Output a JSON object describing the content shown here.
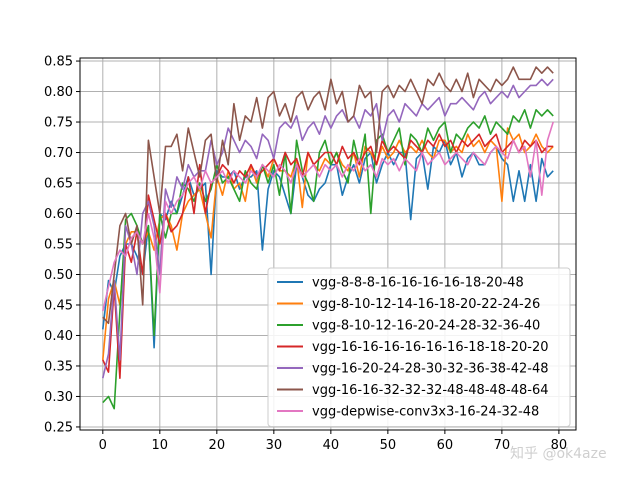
{
  "chart_data": {
    "type": "line",
    "title": "",
    "xlabel": "",
    "ylabel": "",
    "xlim": [
      -4,
      83
    ],
    "ylim": [
      0.245,
      0.855
    ],
    "grid": true,
    "legend_position": "bottom-right",
    "x_ticks": [
      0,
      10,
      20,
      30,
      40,
      50,
      60,
      70,
      80
    ],
    "y_ticks": [
      "0.25",
      "0.30",
      "0.35",
      "0.40",
      "0.45",
      "0.50",
      "0.55",
      "0.60",
      "0.65",
      "0.70",
      "0.75",
      "0.80",
      "0.85"
    ],
    "series": [
      {
        "name": "vgg-8-8-8-16-16-16-16-18-20-48",
        "color": "#1f77b4",
        "values": [
          0.41,
          0.49,
          0.47,
          0.53,
          0.55,
          0.55,
          0.53,
          0.5,
          0.58,
          0.38,
          0.6,
          0.59,
          0.62,
          0.6,
          0.63,
          0.66,
          0.63,
          0.64,
          0.65,
          0.5,
          0.67,
          0.66,
          0.66,
          0.67,
          0.64,
          0.66,
          0.66,
          0.67,
          0.54,
          0.64,
          0.67,
          0.66,
          0.63,
          0.6,
          0.68,
          0.66,
          0.63,
          0.62,
          0.64,
          0.65,
          0.68,
          0.68,
          0.63,
          0.66,
          0.68,
          0.65,
          0.69,
          0.7,
          0.65,
          0.68,
          0.7,
          0.68,
          0.7,
          0.7,
          0.59,
          0.69,
          0.7,
          0.64,
          0.71,
          0.7,
          0.72,
          0.68,
          0.7,
          0.66,
          0.69,
          0.7,
          0.68,
          0.68,
          0.7,
          0.71,
          0.69,
          0.68,
          0.62,
          0.67,
          0.62,
          0.68,
          0.62,
          0.69,
          0.66,
          0.67
        ]
      },
      {
        "name": "vgg-8-10-12-14-16-18-20-22-24-26",
        "color": "#ff7f0e",
        "values": [
          0.36,
          0.46,
          0.49,
          0.45,
          0.55,
          0.57,
          0.57,
          0.55,
          0.57,
          0.54,
          0.59,
          0.6,
          0.58,
          0.54,
          0.6,
          0.62,
          0.63,
          0.64,
          0.6,
          0.56,
          0.66,
          0.63,
          0.67,
          0.64,
          0.65,
          0.62,
          0.68,
          0.65,
          0.68,
          0.66,
          0.69,
          0.67,
          0.67,
          0.66,
          0.69,
          0.61,
          0.7,
          0.68,
          0.67,
          0.69,
          0.68,
          0.7,
          0.68,
          0.67,
          0.7,
          0.66,
          0.71,
          0.7,
          0.68,
          0.71,
          0.69,
          0.7,
          0.72,
          0.7,
          0.71,
          0.7,
          0.72,
          0.7,
          0.69,
          0.72,
          0.72,
          0.7,
          0.71,
          0.7,
          0.73,
          0.71,
          0.72,
          0.7,
          0.72,
          0.71,
          0.62,
          0.74,
          0.72,
          0.73,
          0.7,
          0.71,
          0.73,
          0.71,
          0.7,
          0.71
        ]
      },
      {
        "name": "vgg-8-10-12-16-20-24-28-32-36-40",
        "color": "#2ca02c",
        "values": [
          0.29,
          0.3,
          0.28,
          0.44,
          0.59,
          0.6,
          0.58,
          0.55,
          0.58,
          0.4,
          0.6,
          0.56,
          0.6,
          0.6,
          0.65,
          0.64,
          0.62,
          0.65,
          0.62,
          0.64,
          0.68,
          0.65,
          0.66,
          0.64,
          0.62,
          0.67,
          0.65,
          0.64,
          0.68,
          0.65,
          0.68,
          0.63,
          0.7,
          0.6,
          0.72,
          0.67,
          0.65,
          0.62,
          0.7,
          0.72,
          0.68,
          0.7,
          0.67,
          0.65,
          0.72,
          0.68,
          0.73,
          0.6,
          0.72,
          0.73,
          0.7,
          0.72,
          0.74,
          0.68,
          0.73,
          0.72,
          0.7,
          0.74,
          0.72,
          0.74,
          0.75,
          0.7,
          0.73,
          0.72,
          0.74,
          0.75,
          0.74,
          0.76,
          0.73,
          0.75,
          0.74,
          0.73,
          0.76,
          0.75,
          0.77,
          0.74,
          0.77,
          0.76,
          0.77,
          0.76
        ]
      },
      {
        "name": "vgg-16-16-16-16-16-16-18-18-20-20",
        "color": "#d62728",
        "values": [
          0.36,
          0.34,
          0.48,
          0.33,
          0.55,
          0.52,
          0.57,
          0.5,
          0.63,
          0.59,
          0.55,
          0.6,
          0.57,
          0.58,
          0.6,
          0.66,
          0.6,
          0.68,
          0.6,
          0.65,
          0.66,
          0.68,
          0.67,
          0.65,
          0.67,
          0.66,
          0.68,
          0.66,
          0.67,
          0.68,
          0.69,
          0.67,
          0.7,
          0.68,
          0.69,
          0.66,
          0.7,
          0.68,
          0.69,
          0.7,
          0.7,
          0.68,
          0.71,
          0.69,
          0.7,
          0.68,
          0.7,
          0.71,
          0.68,
          0.72,
          0.7,
          0.71,
          0.7,
          0.69,
          0.72,
          0.71,
          0.7,
          0.72,
          0.71,
          0.73,
          0.71,
          0.72,
          0.7,
          0.72,
          0.71,
          0.72,
          0.73,
          0.71,
          0.72,
          0.73,
          0.7,
          0.71,
          0.72,
          0.7,
          0.72,
          0.71,
          0.72,
          0.7,
          0.71,
          0.71
        ]
      },
      {
        "name": "vgg-16-20-24-28-30-32-36-38-42-48",
        "color": "#9467bd",
        "values": [
          0.33,
          0.37,
          0.49,
          0.36,
          0.58,
          0.55,
          0.5,
          0.6,
          0.62,
          0.58,
          0.5,
          0.64,
          0.61,
          0.66,
          0.64,
          0.68,
          0.66,
          0.67,
          0.67,
          0.72,
          0.68,
          0.7,
          0.74,
          0.72,
          0.7,
          0.72,
          0.71,
          0.69,
          0.73,
          0.72,
          0.69,
          0.74,
          0.75,
          0.74,
          0.76,
          0.72,
          0.74,
          0.75,
          0.73,
          0.76,
          0.74,
          0.76,
          0.77,
          0.75,
          0.76,
          0.74,
          0.77,
          0.76,
          0.78,
          0.72,
          0.76,
          0.77,
          0.75,
          0.78,
          0.77,
          0.76,
          0.78,
          0.77,
          0.78,
          0.79,
          0.76,
          0.78,
          0.78,
          0.79,
          0.78,
          0.77,
          0.79,
          0.8,
          0.78,
          0.79,
          0.8,
          0.79,
          0.81,
          0.79,
          0.8,
          0.81,
          0.81,
          0.82,
          0.81,
          0.82
        ]
      },
      {
        "name": "vgg-16-16-32-32-32-48-48-48-48-64",
        "color": "#8c564b",
        "values": [
          0.43,
          0.42,
          0.5,
          0.58,
          0.6,
          0.55,
          0.58,
          0.45,
          0.72,
          0.66,
          0.6,
          0.71,
          0.71,
          0.73,
          0.67,
          0.74,
          0.7,
          0.66,
          0.72,
          0.73,
          0.65,
          0.72,
          0.68,
          0.78,
          0.72,
          0.76,
          0.75,
          0.79,
          0.74,
          0.79,
          0.8,
          0.76,
          0.78,
          0.75,
          0.79,
          0.8,
          0.77,
          0.79,
          0.8,
          0.77,
          0.82,
          0.78,
          0.8,
          0.75,
          0.76,
          0.81,
          0.79,
          0.8,
          0.7,
          0.8,
          0.81,
          0.79,
          0.81,
          0.8,
          0.82,
          0.8,
          0.78,
          0.82,
          0.81,
          0.83,
          0.81,
          0.8,
          0.82,
          0.8,
          0.83,
          0.79,
          0.82,
          0.81,
          0.8,
          0.82,
          0.81,
          0.82,
          0.84,
          0.82,
          0.82,
          0.82,
          0.84,
          0.83,
          0.84,
          0.83
        ]
      },
      {
        "name": "vgg-depwise-conv3x3-16-24-32-48",
        "color": "#e377c2",
        "values": [
          0.44,
          0.48,
          0.52,
          0.54,
          0.53,
          0.56,
          0.57,
          0.55,
          0.6,
          0.56,
          0.47,
          0.62,
          0.6,
          0.62,
          0.63,
          0.65,
          0.66,
          0.64,
          0.67,
          0.65,
          0.66,
          0.67,
          0.65,
          0.67,
          0.66,
          0.65,
          0.67,
          0.66,
          0.68,
          0.67,
          0.66,
          0.68,
          0.67,
          0.65,
          0.68,
          0.66,
          0.67,
          0.68,
          0.66,
          0.68,
          0.67,
          0.68,
          0.66,
          0.68,
          0.67,
          0.69,
          0.67,
          0.68,
          0.66,
          0.69,
          0.68,
          0.69,
          0.67,
          0.69,
          0.68,
          0.67,
          0.7,
          0.68,
          0.69,
          0.7,
          0.68,
          0.69,
          0.7,
          0.69,
          0.68,
          0.7,
          0.69,
          0.68,
          0.7,
          0.71,
          0.7,
          0.69,
          0.72,
          0.7,
          0.71,
          0.66,
          0.72,
          0.63,
          0.72,
          0.75
        ]
      }
    ]
  },
  "watermark": "知乎 @ok4aze"
}
